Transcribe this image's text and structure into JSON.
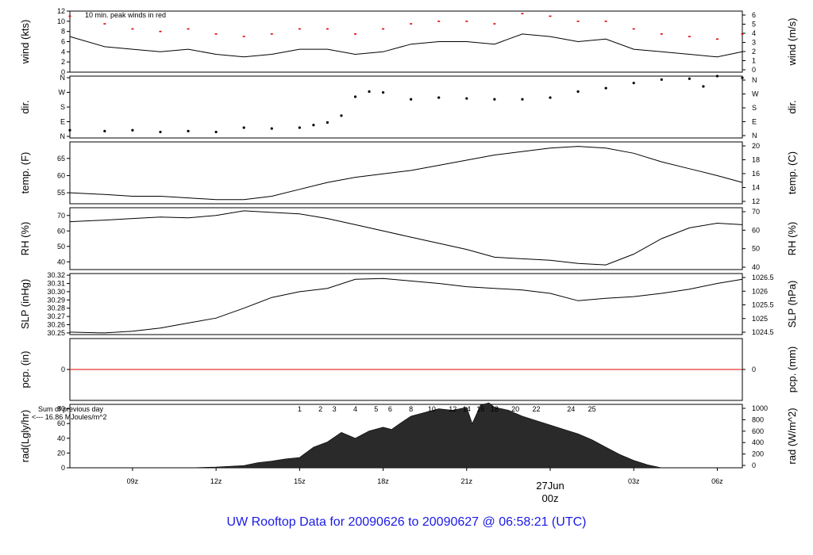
{
  "footer": "UW Rooftop Data for 20090626  to  20090627 @ 06:58:21  (UTC)",
  "colors": {
    "axis": "#000000",
    "peak": "#e00000",
    "zero_line": "#e00000",
    "date_label": "#e00000",
    "footer": "#1a1ae6",
    "purple": "#8a1ac8"
  },
  "x_axis": {
    "ticks": [
      "09z",
      "12z",
      "15z",
      "18z",
      "21z",
      "00z",
      "03z",
      "06z"
    ],
    "date_label": "27Jun",
    "date_at_tick": "00z",
    "start_hour": 6.75,
    "end_hour": 30.9
  },
  "panels": {
    "wind": {
      "ylabel": "wind (kts)",
      "ylabel_right": "wind (m/s)",
      "note": "10 min. peak winds in red",
      "left_ticks": [
        "0",
        "2",
        "4",
        "6",
        "8",
        "10",
        "12"
      ],
      "right_ticks": [
        "0",
        "1",
        "2",
        "3",
        "4",
        "5",
        "6"
      ],
      "ylim": [
        0,
        12
      ],
      "data": {
        "x": [
          6.75,
          8,
          9,
          10,
          11,
          12,
          13,
          14,
          15,
          16,
          17,
          18,
          19,
          20,
          21,
          22,
          23,
          24,
          25,
          26,
          27,
          28,
          29,
          30,
          30.9
        ],
        "y": [
          7,
          5,
          4.5,
          4,
          4.5,
          3.5,
          3,
          3.5,
          4.5,
          4.5,
          3.5,
          4,
          5.5,
          6,
          6,
          5.5,
          7.5,
          7,
          6,
          6.5,
          4.5,
          4,
          3.5,
          3,
          4
        ]
      },
      "peaks": {
        "x": [
          6.75,
          8,
          9,
          10,
          11,
          12,
          13,
          14,
          15,
          16,
          17,
          18,
          19,
          20,
          21,
          22,
          23,
          24,
          25,
          26,
          27,
          28,
          29,
          30,
          30.9
        ],
        "y": [
          11,
          9.5,
          8.5,
          8,
          8.5,
          7.5,
          7,
          7.5,
          8.5,
          8.5,
          7.5,
          8.5,
          9.5,
          10,
          10,
          9.5,
          11.5,
          11,
          10,
          10,
          8.5,
          7.5,
          7,
          6.5,
          7.5
        ]
      }
    },
    "dir": {
      "ylabel": "dir.",
      "ylabel_right": "dir.",
      "left_ticks": [
        "N",
        "E",
        "S",
        "W",
        "N"
      ],
      "right_ticks": [
        "N",
        "E",
        "S",
        "W",
        "N"
      ],
      "ylim": [
        0,
        360
      ],
      "data": {
        "x": [
          6.75,
          8,
          9,
          10,
          11,
          12,
          13,
          14,
          15,
          15.5,
          16,
          16.5,
          17,
          17.5,
          18,
          19,
          20,
          21,
          22,
          23,
          24,
          25,
          26,
          27,
          28,
          29,
          29.5,
          30,
          30.9
        ],
        "y": [
          45,
          40,
          45,
          35,
          40,
          35,
          60,
          55,
          60,
          75,
          90,
          130,
          240,
          270,
          265,
          225,
          235,
          230,
          225,
          225,
          235,
          270,
          290,
          320,
          340,
          345,
          300,
          360,
          350
        ]
      }
    },
    "temp": {
      "ylabel": "temp. (F)",
      "ylabel_right": "temp. (C)",
      "left_ticks": [
        "55",
        "60",
        "65"
      ],
      "right_ticks": [
        "12",
        "14",
        "16",
        "18",
        "20"
      ],
      "ylim": [
        51.8,
        69.8
      ],
      "data": {
        "x": [
          6.75,
          8,
          9,
          10,
          11,
          12,
          13,
          14,
          15,
          16,
          17,
          18,
          19,
          20,
          21,
          22,
          23,
          24,
          25,
          26,
          27,
          28,
          29,
          30,
          30.9
        ],
        "y": [
          55,
          54.5,
          54,
          54,
          53.5,
          53,
          53,
          54,
          56,
          58,
          59.5,
          60.5,
          61.5,
          63,
          64.5,
          66,
          67,
          68,
          68.5,
          68,
          66.5,
          64,
          62,
          60,
          58
        ]
      }
    },
    "rh": {
      "ylabel": "RH (%)",
      "ylabel_right": "RH (%)",
      "left_ticks": [
        "40",
        "50",
        "60",
        "70"
      ],
      "right_ticks": [
        "40",
        "50",
        "60",
        "70"
      ],
      "ylim": [
        35,
        75
      ],
      "data": {
        "x": [
          6.75,
          8,
          9,
          10,
          11,
          12,
          13,
          14,
          15,
          16,
          17,
          18,
          19,
          20,
          21,
          22,
          23,
          24,
          25,
          26,
          27,
          28,
          29,
          30,
          30.9
        ],
        "y": [
          66,
          67,
          68,
          69,
          68.5,
          70,
          73,
          72,
          71,
          68,
          64,
          60,
          56,
          52,
          48,
          43,
          42,
          41,
          39,
          38,
          45,
          55,
          62,
          65,
          64
        ]
      }
    },
    "slp": {
      "ylabel": "SLP (inHg)",
      "ylabel_right": "SLP (hPa)",
      "left_ticks": [
        "30.25",
        "30.26",
        "30.27",
        "30.28",
        "30.29",
        "30.30",
        "30.31",
        "30.32"
      ],
      "right_ticks": [
        "1024.5",
        "1025",
        "1025.5",
        "1026",
        "1026.5"
      ],
      "ylim": [
        30.248,
        30.322
      ],
      "data": {
        "x": [
          6.75,
          8,
          9,
          10,
          11,
          12,
          13,
          14,
          15,
          16,
          17,
          18,
          19,
          20,
          21,
          22,
          23,
          24,
          25,
          26,
          27,
          28,
          29,
          30,
          30.9
        ],
        "y": [
          30.251,
          30.25,
          30.252,
          30.256,
          30.262,
          30.268,
          30.28,
          30.293,
          30.3,
          30.304,
          30.315,
          30.316,
          30.313,
          30.31,
          30.306,
          30.304,
          30.302,
          30.298,
          30.289,
          30.292,
          30.294,
          30.298,
          30.303,
          30.31,
          30.315
        ]
      }
    },
    "pcp": {
      "ylabel": "pcp. (in)",
      "ylabel_right": "pcp. (mm)",
      "left_ticks": [
        "0"
      ],
      "right_ticks": [
        "0"
      ],
      "ylim": [
        -1,
        1
      ],
      "data": {
        "x": [
          6.75,
          30.9
        ],
        "y": [
          0,
          0
        ]
      }
    },
    "rad": {
      "ylabel": "rad(Lgly/hr)",
      "ylabel_right": "rad (W/m^2)",
      "left_ticks": [
        "0",
        "20",
        "40",
        "60",
        "80"
      ],
      "right_ticks": [
        "0",
        "200",
        "400",
        "600",
        "800",
        "1000"
      ],
      "ylim": [
        0,
        86
      ],
      "note_line1": "Sum of previous day",
      "note_line2": "<--- 16.86 MJoules/m^2",
      "hour_labels": [
        "1",
        "2",
        "3",
        "4",
        "5",
        "6",
        "8",
        "10",
        "12",
        "14",
        "16",
        "18",
        "20",
        "22",
        "24",
        "25"
      ],
      "hour_label_x": [
        15,
        15.75,
        16.25,
        17,
        17.75,
        18.25,
        19,
        19.75,
        20.5,
        21,
        21.5,
        22,
        22.75,
        23.5,
        24.75,
        25.5
      ],
      "data": {
        "x": [
          11,
          12,
          13,
          13.5,
          14,
          14.5,
          15,
          15.5,
          16,
          16.5,
          17,
          17.5,
          18,
          18.3,
          18.6,
          19,
          19.5,
          20,
          20.5,
          21,
          21.2,
          21.5,
          21.8,
          22,
          22.5,
          23,
          23.5,
          24,
          24.5,
          25,
          25.5,
          26,
          26.5,
          27,
          27.5,
          28
        ],
        "y": [
          0,
          1,
          3,
          7,
          9,
          12,
          14,
          28,
          35,
          48,
          40,
          50,
          55,
          52,
          60,
          70,
          75,
          80,
          78,
          82,
          60,
          85,
          88,
          82,
          78,
          70,
          64,
          58,
          52,
          46,
          38,
          28,
          18,
          10,
          4,
          0
        ]
      }
    }
  }
}
